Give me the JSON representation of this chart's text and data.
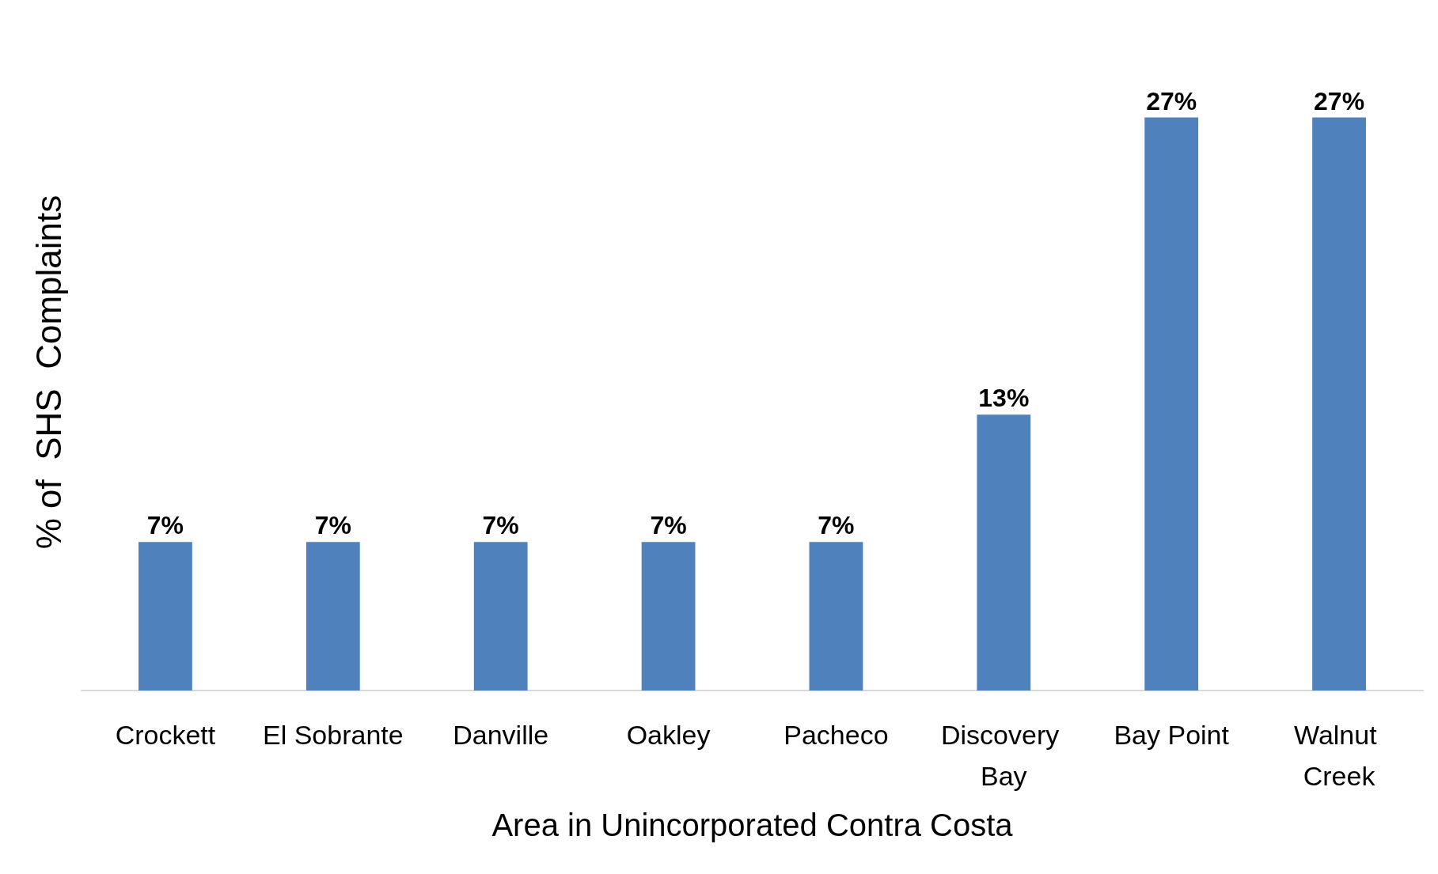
{
  "chart_data": {
    "type": "bar",
    "xlabel": "Area in Unincorporated Contra Costa",
    "ylabel": "% of  SHS  Complaints",
    "categories": [
      "Crockett",
      "El Sobrante",
      "Danville",
      "Oakley",
      "Pacheco",
      "Discovery Bay",
      "Bay Point",
      "Walnut Creek"
    ],
    "values": [
      7,
      7,
      7,
      7,
      7,
      13,
      27,
      27
    ],
    "value_labels": [
      "7%",
      "7%",
      "7%",
      "7%",
      "7%",
      "13%",
      "27%",
      "27%"
    ],
    "color": "#4f81bd",
    "grid": false
  }
}
